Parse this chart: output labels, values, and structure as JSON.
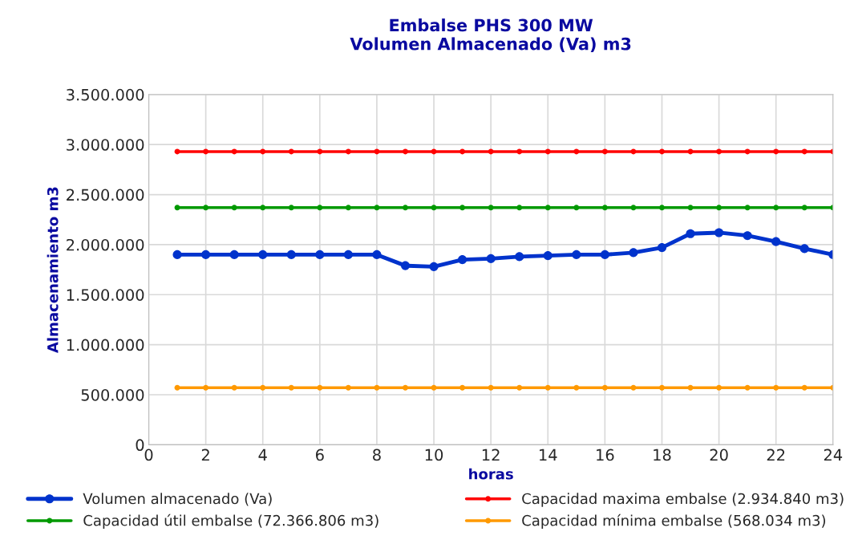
{
  "chart_data": {
    "type": "line",
    "title": "Embalse PHS 300 MW\nVolumen Almacenado (Va) m3",
    "xlabel": "horas",
    "ylabel": "Almacenamiento m3",
    "x": [
      1,
      2,
      3,
      4,
      5,
      6,
      7,
      8,
      9,
      10,
      11,
      12,
      13,
      14,
      15,
      16,
      17,
      18,
      19,
      20,
      21,
      22,
      23,
      24
    ],
    "series": [
      {
        "name": "Volumen almacenado (Va)",
        "color": "#0033cc",
        "values": [
          1900000,
          1900000,
          1900000,
          1900000,
          1900000,
          1900000,
          1900000,
          1900000,
          1790000,
          1780000,
          1850000,
          1860000,
          1880000,
          1890000,
          1900000,
          1900000,
          1920000,
          1970000,
          2110000,
          2120000,
          2090000,
          2030000,
          1960000,
          1900000
        ]
      },
      {
        "name": "Capacidad maxima embalse (2.934.840 m3)",
        "color": "#ff0000",
        "values": [
          2930000,
          2930000,
          2930000,
          2930000,
          2930000,
          2930000,
          2930000,
          2930000,
          2930000,
          2930000,
          2930000,
          2930000,
          2930000,
          2930000,
          2930000,
          2930000,
          2930000,
          2930000,
          2930000,
          2930000,
          2930000,
          2930000,
          2930000,
          2930000
        ]
      },
      {
        "name": "Capacidad útil embalse (72.366.806 m3)",
        "color": "#009900",
        "values": [
          2370000,
          2370000,
          2370000,
          2370000,
          2370000,
          2370000,
          2370000,
          2370000,
          2370000,
          2370000,
          2370000,
          2370000,
          2370000,
          2370000,
          2370000,
          2370000,
          2370000,
          2370000,
          2370000,
          2370000,
          2370000,
          2370000,
          2370000,
          2370000
        ]
      },
      {
        "name": "Capacidad mínima embalse (568.034 m3)",
        "color": "#ff9900",
        "values": [
          570000,
          570000,
          570000,
          570000,
          570000,
          570000,
          570000,
          570000,
          570000,
          570000,
          570000,
          570000,
          570000,
          570000,
          570000,
          570000,
          570000,
          570000,
          570000,
          570000,
          570000,
          570000,
          570000,
          570000
        ]
      }
    ],
    "xlim": [
      0,
      24
    ],
    "xticks": [
      0,
      2,
      4,
      6,
      8,
      10,
      12,
      14,
      16,
      18,
      20,
      22,
      24
    ],
    "ylim": [
      0,
      3500000
    ],
    "yticks": [
      {
        "value": 0,
        "label": "0"
      },
      {
        "value": 500000,
        "label": "500.000"
      },
      {
        "value": 1000000,
        "label": "1.000.000"
      },
      {
        "value": 1500000,
        "label": "1.500.000"
      },
      {
        "value": 2000000,
        "label": "2.000.000"
      },
      {
        "value": 2500000,
        "label": "2.500.000"
      },
      {
        "value": 3000000,
        "label": "3.000.000"
      },
      {
        "value": 3500000,
        "label": "3.500.000"
      }
    ],
    "grid": true,
    "legend": "bottom",
    "marker": "circle",
    "line_style": "solid"
  }
}
